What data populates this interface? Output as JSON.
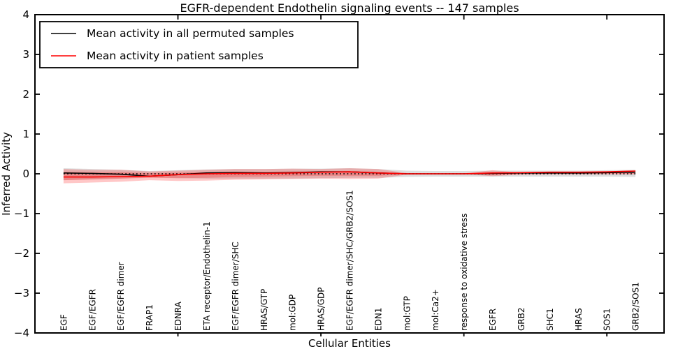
{
  "title": "EGFR-dependent Endothelin signaling events -- 147 samples",
  "legend": {
    "position": "upper left",
    "entries": [
      {
        "label": "Mean activity in all permuted samples",
        "color": "#000000"
      },
      {
        "label": "Mean activity in patient samples",
        "color": "#ff0000"
      }
    ]
  },
  "chart_data": {
    "type": "line",
    "title": "EGFR-dependent Endothelin signaling events -- 147 samples",
    "xlabel": "Cellular Entities",
    "ylabel": "Inferred Activity",
    "ylim": [
      -4,
      4
    ],
    "yticks": [
      -4,
      -3,
      -2,
      -1,
      0,
      1,
      2,
      3,
      4
    ],
    "x_major_tick_indices": [
      5,
      10,
      15,
      20
    ],
    "grid": false,
    "legend_position": "upper left",
    "categories": [
      "EGF",
      "EGF/EGFR",
      "EGF/EGFR dimer",
      "FRAP1",
      "EDNRA",
      "ETA receptor/Endothelin-1",
      "EGF/EGFR dimer/SHC",
      "HRAS/GTP",
      "mol:GDP",
      "HRAS/GDP",
      "EGF/EGFR dimer/SHC/GRB2/SOS1",
      "EDN1",
      "mol:GTP",
      "mol:Ca2+",
      "response to oxidative stress",
      "EGFR",
      "GRB2",
      "SHC1",
      "HRAS",
      "SOS1",
      "GRB2/SOS1"
    ],
    "series": [
      {
        "name": "Mean activity in all permuted samples",
        "color": "#000000",
        "values": [
          0.02,
          0.01,
          -0.01,
          -0.06,
          -0.02,
          0.02,
          0.03,
          0.02,
          0.03,
          0.05,
          0.05,
          0.02,
          0.0,
          0.0,
          0.0,
          0.01,
          0.02,
          0.02,
          0.02,
          0.03,
          0.04
        ]
      },
      {
        "name": "Mean activity in patient samples",
        "color": "#ff0000",
        "values": [
          -0.08,
          -0.08,
          -0.07,
          -0.06,
          -0.02,
          0.0,
          0.01,
          0.01,
          0.02,
          0.04,
          0.05,
          0.02,
          0.0,
          0.0,
          0.0,
          0.02,
          0.03,
          0.04,
          0.04,
          0.05,
          0.07
        ]
      }
    ],
    "bands": [
      {
        "name": "permuted-std",
        "color": "#000000",
        "opacity": 0.13,
        "upper": [
          0.14,
          0.12,
          0.1,
          0.07,
          0.09,
          0.11,
          0.12,
          0.12,
          0.13,
          0.13,
          0.14,
          0.12,
          0.08,
          0.07,
          0.07,
          0.08,
          0.08,
          0.08,
          0.08,
          0.09,
          0.1
        ],
        "lower": [
          -0.16,
          -0.14,
          -0.12,
          -0.09,
          -0.11,
          -0.12,
          -0.12,
          -0.12,
          -0.12,
          -0.11,
          -0.1,
          -0.1,
          -0.08,
          -0.07,
          -0.07,
          -0.07,
          -0.07,
          -0.07,
          -0.07,
          -0.07,
          -0.08
        ]
      },
      {
        "name": "patient-std-outer",
        "color": "#ff0000",
        "opacity": 0.22,
        "upper": [
          0.12,
          0.1,
          0.1,
          0.06,
          0.08,
          0.1,
          0.12,
          0.12,
          0.13,
          0.12,
          0.14,
          0.12,
          0.02,
          0.01,
          0.01,
          0.09,
          0.03,
          0.02,
          0.02,
          0.02,
          0.03
        ],
        "lower": [
          -0.24,
          -0.22,
          -0.2,
          -0.16,
          -0.18,
          -0.17,
          -0.15,
          -0.14,
          -0.13,
          -0.12,
          -0.13,
          -0.12,
          -0.02,
          -0.01,
          -0.01,
          -0.06,
          -0.02,
          -0.01,
          -0.01,
          -0.01,
          -0.01
        ]
      },
      {
        "name": "patient-std-inner",
        "color": "#ff0000",
        "opacity": 0.22,
        "upper": [
          0.05,
          0.04,
          0.04,
          0.02,
          0.03,
          0.04,
          0.05,
          0.05,
          0.06,
          0.06,
          0.07,
          0.05,
          0.01,
          0.005,
          0.005,
          0.04,
          0.015,
          0.01,
          0.01,
          0.01,
          0.015
        ],
        "lower": [
          -0.16,
          -0.14,
          -0.12,
          -0.1,
          -0.11,
          -0.1,
          -0.08,
          -0.07,
          -0.06,
          -0.05,
          -0.05,
          -0.05,
          -0.01,
          -0.005,
          -0.005,
          -0.03,
          -0.01,
          -0.005,
          -0.005,
          -0.005,
          -0.01
        ]
      }
    ],
    "zero_line": {
      "style": "dotted",
      "color": "#000000",
      "value": 0
    }
  }
}
